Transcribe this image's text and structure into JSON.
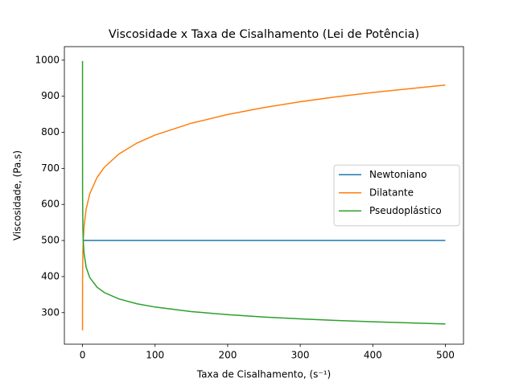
{
  "chart_data": {
    "type": "line",
    "title": "Viscosidade x Taxa de Cisalhamento (Lei de Potência)",
    "x_label": "Taxa de Cisalhamento, (s⁻¹)",
    "y_label": "Viscosidade, (Pa.s)",
    "x": [
      0.001,
      0.01,
      0.1,
      0.5,
      1,
      2,
      5,
      10,
      20,
      30,
      50,
      75,
      100,
      150,
      200,
      250,
      300,
      350,
      400,
      450,
      500
    ],
    "series": [
      {
        "name": "Newtoniano",
        "color": "#1f77b4",
        "values": [
          500,
          500,
          500,
          500,
          500,
          500,
          500,
          500,
          500,
          500,
          500,
          500,
          500,
          500,
          500,
          500,
          500,
          500,
          500,
          500,
          500
        ]
      },
      {
        "name": "Dilatante",
        "color": "#ff7f0e",
        "values": [
          250.6,
          315.5,
          397.2,
          466.5,
          500,
          535.9,
          587.3,
          629.5,
          674.6,
          702.9,
          739.6,
          770.2,
          792.4,
          825.2,
          849.3,
          868.6,
          884.7,
          898.5,
          910.3,
          920.8,
          931.0
        ]
      },
      {
        "name": "Pseudoplástico",
        "color": "#2ca02c",
        "values": [
          997.6,
          792.4,
          629.5,
          535.9,
          500,
          466.5,
          425.7,
          397.2,
          370.6,
          355.7,
          338.0,
          324.6,
          315.5,
          302.9,
          294.4,
          287.8,
          282.6,
          278.2,
          274.6,
          271.5,
          268.5
        ]
      }
    ],
    "xlim": [
      -25,
      525
    ],
    "xticks": [
      0,
      100,
      200,
      300,
      400,
      500
    ],
    "ylim": [
      212.5,
      1037.5
    ],
    "yticks": [
      300,
      400,
      500,
      600,
      700,
      800,
      900,
      1000
    ],
    "legend": "center right"
  }
}
